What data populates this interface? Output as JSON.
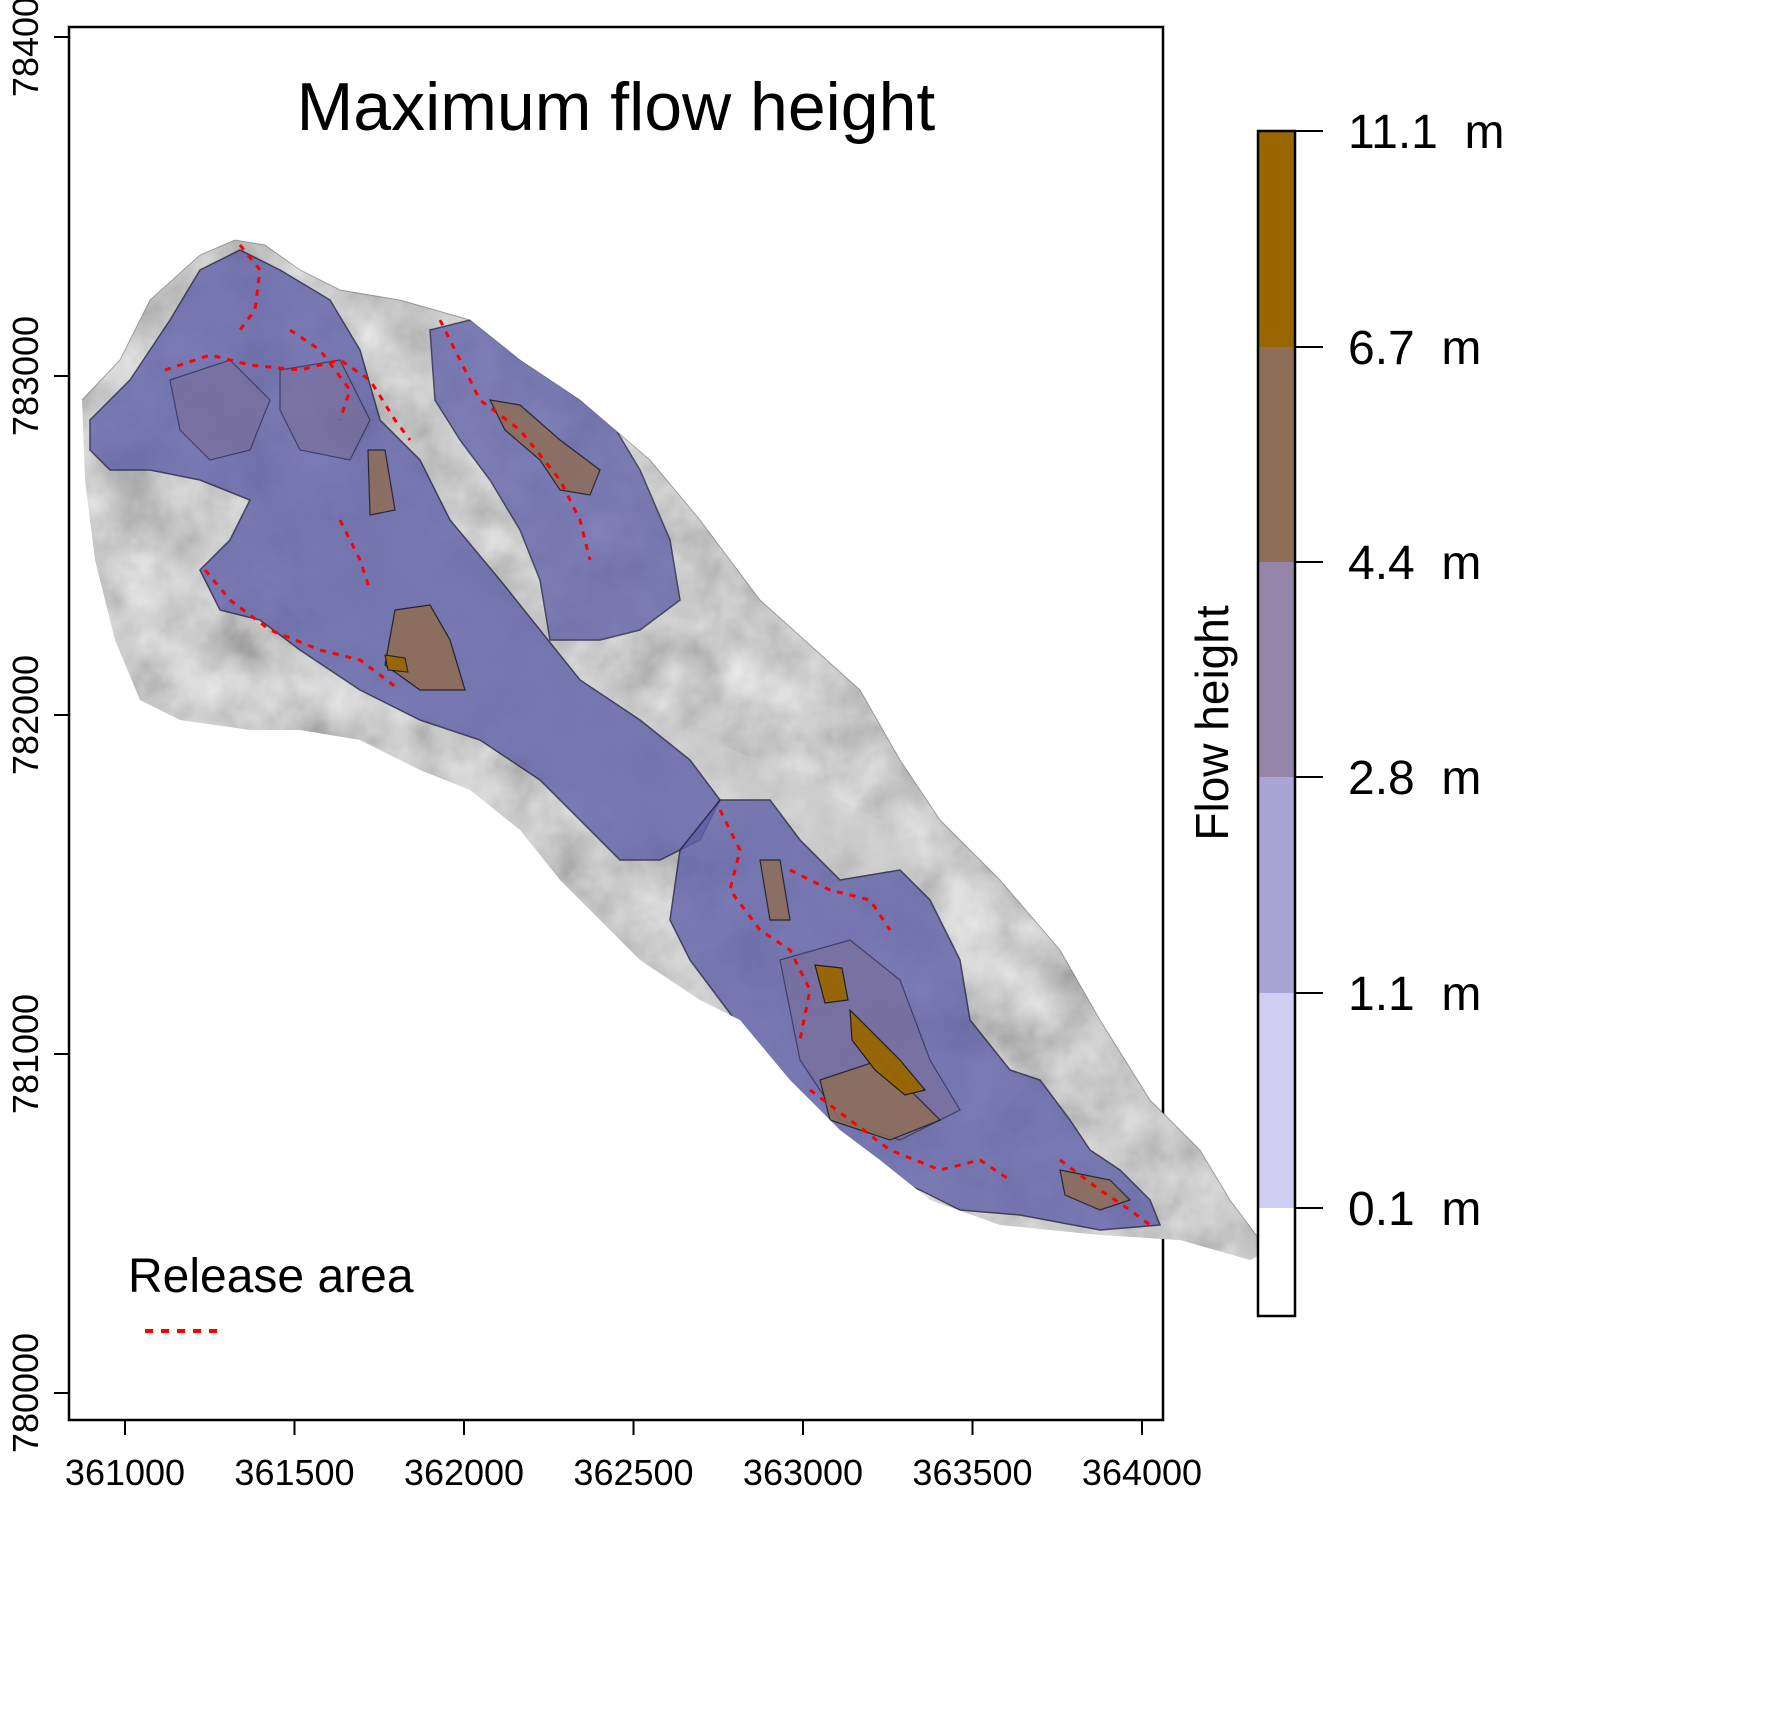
{
  "map": {
    "title": "Maximum flow height",
    "x_ticks": [
      "361000",
      "361500",
      "362000",
      "362500",
      "363000",
      "363500",
      "364000"
    ],
    "y_ticks": [
      "780000",
      "781000",
      "782000",
      "783000",
      "784000"
    ],
    "release_legend": {
      "label": "Release area",
      "color": "#ff0000",
      "line_style": "dashed"
    }
  },
  "colorbar": {
    "title": "Flow height",
    "labels": [
      "11.1  m",
      "6.7  m",
      "4.4  m",
      "2.8  m",
      "1.1  m",
      "0.1  m"
    ],
    "bands": [
      {
        "from": 6.7,
        "to": 11.1,
        "color": "#996600"
      },
      {
        "from": 4.4,
        "to": 6.7,
        "color": "#8f6e57"
      },
      {
        "from": 2.8,
        "to": 4.4,
        "color": "#9585a8"
      },
      {
        "from": 1.1,
        "to": 2.8,
        "color": "#a9a3d6"
      },
      {
        "from": 0.1,
        "to": 1.1,
        "color": "#d0cdf2"
      },
      {
        "from": 0,
        "to": 0.1,
        "color": "#ffffff"
      }
    ]
  }
}
